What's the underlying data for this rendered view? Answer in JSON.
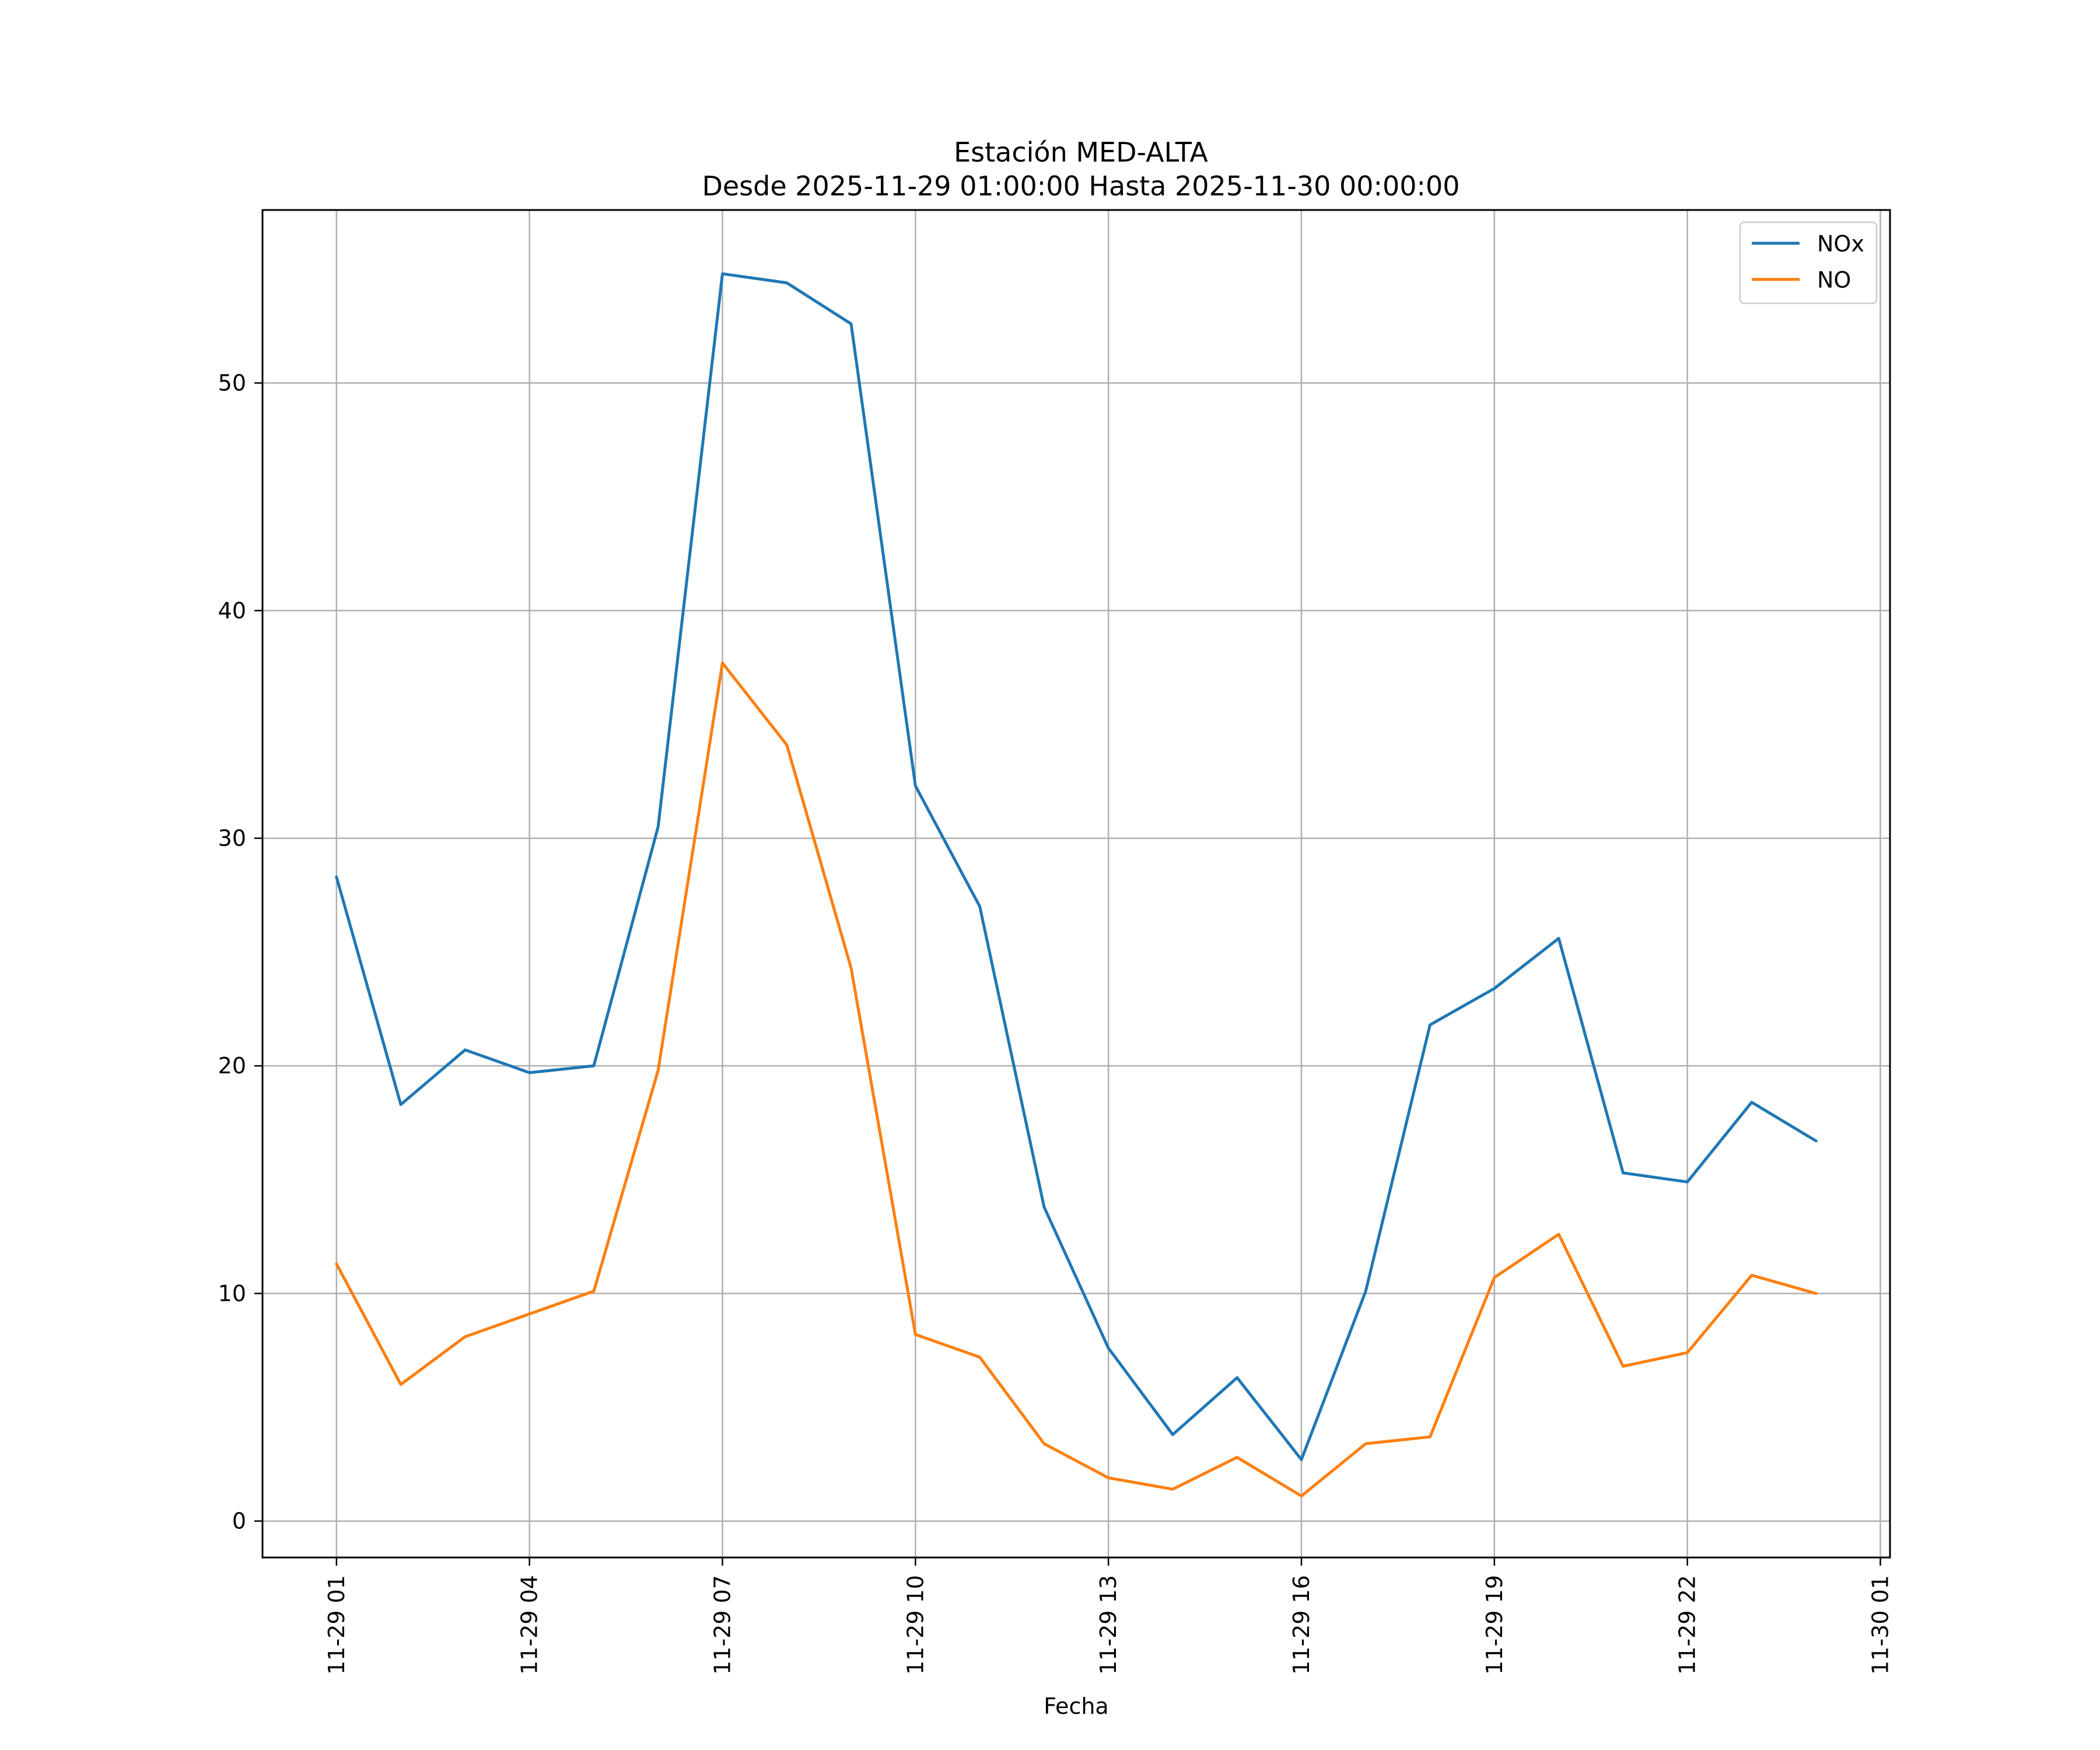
{
  "chart_data": {
    "type": "line",
    "title": "Estación MED-ALTA",
    "subtitle": "Desde 2025-11-29 01:00:00 Hasta 2025-11-30 00:00:00",
    "xlabel": "Fecha",
    "ylabel": "",
    "x": [
      "2025-11-29 01:00",
      "2025-11-29 02:00",
      "2025-11-29 03:00",
      "2025-11-29 04:00",
      "2025-11-29 05:00",
      "2025-11-29 06:00",
      "2025-11-29 07:00",
      "2025-11-29 08:00",
      "2025-11-29 09:00",
      "2025-11-29 10:00",
      "2025-11-29 11:00",
      "2025-11-29 12:00",
      "2025-11-29 13:00",
      "2025-11-29 14:00",
      "2025-11-29 15:00",
      "2025-11-29 16:00",
      "2025-11-29 17:00",
      "2025-11-29 18:00",
      "2025-11-29 19:00",
      "2025-11-29 20:00",
      "2025-11-29 21:00",
      "2025-11-29 22:00",
      "2025-11-29 23:00",
      "2025-11-30 00:00"
    ],
    "x_hours": [
      0,
      1,
      2,
      3,
      4,
      5,
      6,
      7,
      8,
      9,
      10,
      11,
      12,
      13,
      14,
      15,
      16,
      17,
      18,
      19,
      20,
      21,
      22,
      23
    ],
    "xlim_hours": [
      -1.15,
      24.15
    ],
    "xticks": [
      {
        "hour": 0,
        "label": "11-29 01"
      },
      {
        "hour": 3,
        "label": "11-29 04"
      },
      {
        "hour": 6,
        "label": "11-29 07"
      },
      {
        "hour": 9,
        "label": "11-29 10"
      },
      {
        "hour": 12,
        "label": "11-29 13"
      },
      {
        "hour": 15,
        "label": "11-29 16"
      },
      {
        "hour": 18,
        "label": "11-29 19"
      },
      {
        "hour": 21,
        "label": "11-29 22"
      },
      {
        "hour": 24,
        "label": "11-30 01"
      }
    ],
    "ylim": [
      -1.6,
      57.6
    ],
    "yticks": [
      0,
      10,
      20,
      30,
      40,
      50
    ],
    "grid": true,
    "legend_position": "top-right",
    "series": [
      {
        "name": "NOx",
        "color": "#1f77b4",
        "values": [
          28.3,
          18.3,
          20.7,
          19.7,
          20.0,
          30.5,
          54.8,
          54.4,
          52.6,
          32.3,
          27.0,
          13.8,
          7.6,
          3.8,
          6.3,
          2.7,
          10.1,
          21.8,
          23.4,
          25.6,
          15.3,
          14.9,
          18.4,
          16.7
        ]
      },
      {
        "name": "NO",
        "color": "#ff7f0e",
        "values": [
          11.3,
          6.0,
          8.1,
          9.1,
          10.1,
          19.8,
          37.7,
          34.1,
          24.3,
          8.2,
          7.2,
          3.4,
          1.9,
          1.4,
          2.8,
          1.1,
          3.4,
          3.7,
          10.7,
          12.6,
          6.8,
          7.4,
          10.8,
          10.0
        ]
      }
    ]
  }
}
